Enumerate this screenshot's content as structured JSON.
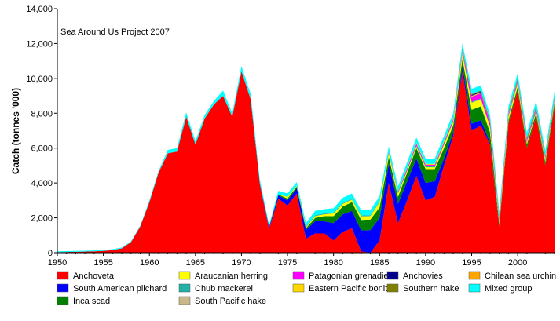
{
  "chart_data": {
    "type": "area",
    "stacked": true,
    "annotation": "Sea Around Us Project 2007",
    "ylabel": "Catch (tonnes '000)",
    "xlabel": "",
    "xlim": [
      1950,
      2004
    ],
    "ylim": [
      0,
      14000
    ],
    "x_ticks": [
      1950,
      1955,
      1960,
      1965,
      1970,
      1975,
      1980,
      1985,
      1990,
      1995,
      2000
    ],
    "y_ticks": [
      0,
      2000,
      4000,
      6000,
      8000,
      10000,
      12000,
      14000
    ],
    "y_tick_labels": [
      "0",
      "2,000",
      "4,000",
      "6,000",
      "8,000",
      "10,000",
      "12,000",
      "14,000"
    ],
    "grid": false,
    "legend_position": "bottom",
    "x": [
      1950,
      1951,
      1952,
      1953,
      1954,
      1955,
      1956,
      1957,
      1958,
      1959,
      1960,
      1961,
      1962,
      1963,
      1964,
      1965,
      1966,
      1967,
      1968,
      1969,
      1970,
      1971,
      1972,
      1973,
      1974,
      1975,
      1976,
      1977,
      1978,
      1979,
      1980,
      1981,
      1982,
      1983,
      1984,
      1985,
      1986,
      1987,
      1988,
      1989,
      1990,
      1991,
      1992,
      1993,
      1994,
      1995,
      1996,
      1997,
      1998,
      1999,
      2000,
      2001,
      2002,
      2003,
      2004
    ],
    "series": [
      {
        "name": "Anchoveta",
        "color": "#ff0000",
        "values": [
          30,
          40,
          50,
          60,
          80,
          100,
          150,
          250,
          600,
          1500,
          2900,
          4600,
          5700,
          5800,
          7800,
          6200,
          7700,
          8500,
          9000,
          7800,
          10400,
          8800,
          3900,
          1350,
          3100,
          2700,
          3400,
          800,
          1100,
          1100,
          700,
          1200,
          1400,
          80,
          0,
          700,
          4000,
          1700,
          3000,
          4400,
          3000,
          3200,
          5000,
          6700,
          10400,
          7000,
          7300,
          6200,
          1500,
          7400,
          9300,
          6000,
          7800,
          5000,
          8400
        ]
      },
      {
        "name": "South American pilchard",
        "color": "#0000ff",
        "values": [
          0,
          0,
          0,
          0,
          0,
          0,
          0,
          0,
          0,
          0,
          0,
          0,
          0,
          0,
          0,
          0,
          0,
          0,
          0,
          0,
          0,
          0,
          50,
          100,
          200,
          300,
          300,
          500,
          700,
          700,
          1000,
          1000,
          1000,
          1200,
          1300,
          1300,
          1100,
          1100,
          1100,
          1000,
          1000,
          900,
          400,
          200,
          300,
          400,
          300,
          100,
          0,
          0,
          0,
          0,
          0,
          0,
          0
        ]
      },
      {
        "name": "Inca scad",
        "color": "#008000",
        "values": [
          0,
          0,
          0,
          0,
          0,
          0,
          0,
          0,
          0,
          0,
          0,
          0,
          0,
          0,
          0,
          0,
          0,
          0,
          0,
          0,
          0,
          0,
          20,
          30,
          50,
          100,
          100,
          100,
          200,
          300,
          400,
          450,
          500,
          600,
          600,
          600,
          400,
          400,
          500,
          600,
          800,
          700,
          600,
          400,
          400,
          800,
          800,
          600,
          150,
          200,
          200,
          200,
          200,
          200,
          200
        ]
      },
      {
        "name": "Araucanian herring",
        "color": "#ffff00",
        "values": [
          0,
          0,
          0,
          0,
          0,
          0,
          0,
          0,
          0,
          0,
          0,
          0,
          0,
          0,
          0,
          0,
          0,
          0,
          0,
          0,
          0,
          0,
          0,
          0,
          0,
          100,
          50,
          50,
          100,
          100,
          150,
          150,
          150,
          200,
          200,
          300,
          200,
          200,
          100,
          100,
          100,
          100,
          200,
          200,
          300,
          400,
          400,
          300,
          100,
          200,
          200,
          100,
          100,
          100,
          100
        ]
      },
      {
        "name": "Chub mackerel",
        "color": "#20b2aa",
        "values": [
          0,
          0,
          0,
          0,
          0,
          0,
          0,
          0,
          0,
          0,
          0,
          0,
          0,
          0,
          0,
          0,
          0,
          0,
          0,
          0,
          0,
          0,
          0,
          0,
          0,
          0,
          0,
          50,
          50,
          50,
          50,
          50,
          50,
          50,
          50,
          50,
          50,
          50,
          50,
          50,
          50,
          50,
          50,
          50,
          50,
          50,
          50,
          50,
          50,
          50,
          50,
          50,
          50,
          50,
          50
        ]
      },
      {
        "name": "South Pacific hake",
        "color": "#c8b88a",
        "values": [
          0,
          0,
          0,
          0,
          0,
          0,
          0,
          0,
          0,
          0,
          0,
          0,
          0,
          0,
          0,
          0,
          0,
          0,
          0,
          0,
          0,
          0,
          0,
          0,
          0,
          0,
          0,
          0,
          0,
          0,
          0,
          0,
          0,
          0,
          0,
          0,
          0,
          0,
          0,
          0,
          0,
          0,
          0,
          0,
          0,
          0,
          0,
          0,
          0,
          0,
          0,
          0,
          0,
          0,
          0
        ]
      },
      {
        "name": "Patagonian grenadier",
        "color": "#ff00ff",
        "values": [
          0,
          0,
          0,
          0,
          0,
          0,
          0,
          0,
          0,
          0,
          0,
          0,
          0,
          0,
          0,
          0,
          0,
          0,
          0,
          0,
          0,
          0,
          0,
          0,
          0,
          0,
          0,
          0,
          0,
          0,
          0,
          0,
          0,
          0,
          0,
          0,
          50,
          50,
          100,
          100,
          100,
          100,
          100,
          100,
          100,
          300,
          300,
          200,
          100,
          100,
          100,
          100,
          100,
          50,
          50
        ]
      },
      {
        "name": "Eastern Pacific bonito",
        "color": "#ffd700",
        "values": [
          0,
          0,
          0,
          0,
          0,
          0,
          0,
          0,
          0,
          0,
          0,
          0,
          0,
          0,
          0,
          0,
          0,
          0,
          0,
          0,
          0,
          0,
          0,
          0,
          0,
          0,
          0,
          0,
          0,
          0,
          0,
          0,
          0,
          0,
          0,
          0,
          0,
          0,
          50,
          50,
          50,
          50,
          50,
          50,
          50,
          50,
          50,
          50,
          50,
          50,
          50,
          50,
          50,
          50,
          50
        ]
      },
      {
        "name": "Anchovies",
        "color": "#00008b",
        "values": [
          0,
          0,
          0,
          0,
          0,
          0,
          0,
          0,
          0,
          0,
          0,
          0,
          0,
          0,
          0,
          0,
          0,
          0,
          0,
          0,
          0,
          0,
          0,
          0,
          0,
          0,
          0,
          0,
          0,
          0,
          0,
          0,
          0,
          0,
          0,
          0,
          0,
          0,
          0,
          0,
          0,
          0,
          0,
          0,
          50,
          50,
          50,
          50,
          50,
          50,
          50,
          50,
          50,
          50,
          50
        ]
      },
      {
        "name": "Southern hake",
        "color": "#808000",
        "values": [
          0,
          0,
          0,
          0,
          0,
          0,
          0,
          0,
          0,
          0,
          0,
          0,
          0,
          0,
          0,
          0,
          0,
          0,
          0,
          0,
          0,
          0,
          0,
          0,
          0,
          0,
          0,
          0,
          0,
          0,
          0,
          0,
          0,
          0,
          0,
          0,
          0,
          0,
          0,
          0,
          0,
          0,
          0,
          0,
          50,
          50,
          50,
          50,
          50,
          50,
          50,
          50,
          50,
          50,
          50
        ]
      },
      {
        "name": "Chilean sea urchin",
        "color": "#ffa500",
        "values": [
          0,
          0,
          0,
          0,
          0,
          0,
          0,
          0,
          0,
          0,
          0,
          0,
          0,
          0,
          0,
          0,
          0,
          0,
          0,
          0,
          0,
          0,
          0,
          0,
          0,
          0,
          0,
          0,
          0,
          0,
          0,
          0,
          0,
          0,
          0,
          0,
          0,
          0,
          0,
          0,
          0,
          0,
          0,
          0,
          0,
          0,
          0,
          0,
          0,
          0,
          0,
          0,
          0,
          0,
          0
        ]
      },
      {
        "name": "Mixed group",
        "color": "#00ffff",
        "values": [
          50,
          50,
          50,
          50,
          50,
          50,
          50,
          50,
          50,
          50,
          100,
          100,
          200,
          200,
          250,
          200,
          200,
          200,
          300,
          200,
          300,
          300,
          200,
          100,
          200,
          200,
          200,
          200,
          250,
          250,
          250,
          300,
          300,
          300,
          300,
          300,
          300,
          300,
          300,
          300,
          300,
          300,
          300,
          300,
          300,
          300,
          300,
          300,
          300,
          300,
          300,
          300,
          300,
          300,
          300
        ]
      }
    ],
    "legend": [
      {
        "name": "Anchoveta",
        "color": "#ff0000"
      },
      {
        "name": "Araucanian herring",
        "color": "#ffff00"
      },
      {
        "name": "Patagonian grenadier",
        "color": "#ff00ff"
      },
      {
        "name": "Anchovies",
        "color": "#00008b"
      },
      {
        "name": "Chilean sea urchin",
        "color": "#ffa500"
      },
      {
        "name": "South American pilchard",
        "color": "#0000ff"
      },
      {
        "name": "Chub mackerel",
        "color": "#20b2aa"
      },
      {
        "name": "Eastern Pacific bonito",
        "color": "#ffd700"
      },
      {
        "name": "Southern hake",
        "color": "#808000"
      },
      {
        "name": "Mixed group",
        "color": "#00ffff"
      },
      {
        "name": "Inca scad",
        "color": "#008000"
      },
      {
        "name": "South Pacific hake",
        "color": "#c8b88a"
      }
    ]
  }
}
